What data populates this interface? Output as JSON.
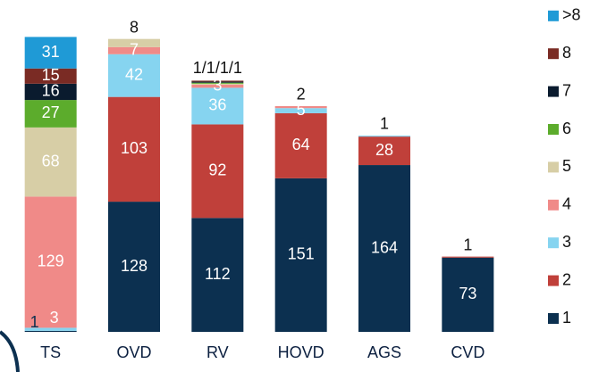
{
  "chart_data": {
    "type": "stacked_bar",
    "categories": [
      "TS",
      "OVD",
      "RV",
      "HOVD",
      "AGS",
      "CVD"
    ],
    "series": [
      {
        "name": "1",
        "color": "#0c3050",
        "values": [
          1,
          128,
          112,
          151,
          164,
          73
        ]
      },
      {
        "name": "2",
        "color": "#c0403a",
        "values": [
          null,
          103,
          92,
          64,
          28,
          1
        ]
      },
      {
        "name": "3",
        "color": "#86d4f0",
        "values": [
          3,
          42,
          36,
          5,
          1,
          null
        ]
      },
      {
        "name": "4",
        "color": "#f08a88",
        "values": [
          129,
          7,
          3,
          2,
          null,
          null
        ]
      },
      {
        "name": "5",
        "color": "#d7cea6",
        "values": [
          68,
          8,
          1,
          null,
          null,
          null
        ]
      },
      {
        "name": "6",
        "color": "#5cac2c",
        "values": [
          27,
          null,
          1,
          null,
          null,
          null
        ]
      },
      {
        "name": "7",
        "color": "#0a1b2e",
        "values": [
          16,
          null,
          1,
          null,
          null,
          null
        ]
      },
      {
        "name": "8",
        "color": "#7a2b24",
        "values": [
          15,
          null,
          1,
          null,
          null,
          null
        ]
      },
      {
        "name": ">8",
        "color": "#1f9ad6",
        "values": [
          31,
          null,
          null,
          null,
          null,
          null
        ]
      }
    ],
    "annotations": [
      {
        "text": "1/1/1/1",
        "category": "RV"
      }
    ],
    "ylim": [
      0,
      300
    ]
  }
}
